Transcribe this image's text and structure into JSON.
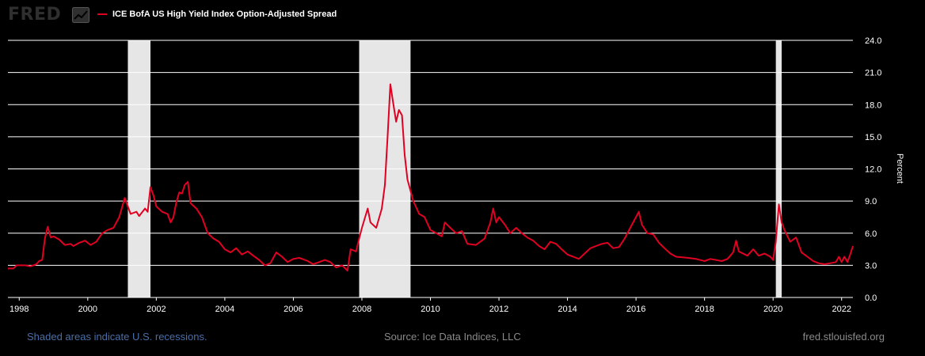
{
  "header": {
    "logo_text": "FRED",
    "logo_icon": "chart-line-icon"
  },
  "footer": {
    "recession_note": "Shaded areas indicate U.S. recessions.",
    "source": "Source: Ice Data Indices, LLC",
    "site": "fred.stlouisfed.org"
  },
  "colors": {
    "series": "#e00022",
    "recession": "#e6e6e6",
    "background": "#000000"
  },
  "chart_data": {
    "type": "line",
    "ylabel": "Percent",
    "ylim": [
      0,
      24
    ],
    "xlim": [
      1997.67,
      2022.33
    ],
    "yticks": [
      "0.0",
      "3.0",
      "6.0",
      "9.0",
      "12.0",
      "15.0",
      "18.0",
      "21.0",
      "24.0"
    ],
    "xticks": [
      "1998",
      "2000",
      "2002",
      "2004",
      "2006",
      "2008",
      "2010",
      "2012",
      "2014",
      "2016",
      "2018",
      "2020",
      "2022"
    ],
    "grid": "horizontal",
    "recessions": [
      [
        2001.17,
        2001.83
      ],
      [
        2007.92,
        2009.42
      ],
      [
        2020.08,
        2020.25
      ]
    ],
    "series": [
      {
        "name": "ICE BofA US High Yield Index Option-Adjusted Spread",
        "points": [
          [
            1997.67,
            2.7
          ],
          [
            1997.83,
            2.7
          ],
          [
            1997.92,
            3.0
          ],
          [
            1998.17,
            3.0
          ],
          [
            1998.33,
            2.9
          ],
          [
            1998.5,
            3.1
          ],
          [
            1998.58,
            3.4
          ],
          [
            1998.67,
            3.5
          ],
          [
            1998.75,
            5.5
          ],
          [
            1998.83,
            6.6
          ],
          [
            1998.92,
            5.6
          ],
          [
            1999.0,
            5.7
          ],
          [
            1999.17,
            5.4
          ],
          [
            1999.33,
            4.9
          ],
          [
            1999.5,
            5.0
          ],
          [
            1999.58,
            4.8
          ],
          [
            1999.75,
            5.1
          ],
          [
            1999.92,
            5.3
          ],
          [
            2000.08,
            4.9
          ],
          [
            2000.25,
            5.2
          ],
          [
            2000.42,
            6.0
          ],
          [
            2000.58,
            6.3
          ],
          [
            2000.75,
            6.5
          ],
          [
            2000.92,
            7.5
          ],
          [
            2001.08,
            9.3
          ],
          [
            2001.17,
            8.5
          ],
          [
            2001.25,
            7.8
          ],
          [
            2001.42,
            8.0
          ],
          [
            2001.5,
            7.6
          ],
          [
            2001.67,
            8.3
          ],
          [
            2001.75,
            8.0
          ],
          [
            2001.83,
            10.3
          ],
          [
            2001.92,
            9.5
          ],
          [
            2002.0,
            8.5
          ],
          [
            2002.17,
            8.0
          ],
          [
            2002.33,
            7.8
          ],
          [
            2002.42,
            7.0
          ],
          [
            2002.5,
            7.5
          ],
          [
            2002.58,
            8.8
          ],
          [
            2002.67,
            9.8
          ],
          [
            2002.75,
            9.7
          ],
          [
            2002.83,
            10.5
          ],
          [
            2002.92,
            10.8
          ],
          [
            2003.0,
            8.8
          ],
          [
            2003.17,
            8.3
          ],
          [
            2003.33,
            7.5
          ],
          [
            2003.5,
            6.0
          ],
          [
            2003.67,
            5.5
          ],
          [
            2003.83,
            5.2
          ],
          [
            2004.0,
            4.5
          ],
          [
            2004.17,
            4.2
          ],
          [
            2004.33,
            4.6
          ],
          [
            2004.5,
            4.0
          ],
          [
            2004.67,
            4.3
          ],
          [
            2004.83,
            3.9
          ],
          [
            2005.0,
            3.5
          ],
          [
            2005.17,
            3.0
          ],
          [
            2005.33,
            3.2
          ],
          [
            2005.5,
            4.2
          ],
          [
            2005.67,
            3.8
          ],
          [
            2005.83,
            3.3
          ],
          [
            2006.0,
            3.6
          ],
          [
            2006.17,
            3.7
          ],
          [
            2006.42,
            3.4
          ],
          [
            2006.58,
            3.1
          ],
          [
            2006.75,
            3.3
          ],
          [
            2006.92,
            3.5
          ],
          [
            2007.08,
            3.3
          ],
          [
            2007.25,
            2.8
          ],
          [
            2007.42,
            3.0
          ],
          [
            2007.58,
            2.5
          ],
          [
            2007.67,
            4.5
          ],
          [
            2007.83,
            4.3
          ],
          [
            2007.92,
            5.5
          ],
          [
            2008.0,
            6.5
          ],
          [
            2008.17,
            8.3
          ],
          [
            2008.25,
            7.0
          ],
          [
            2008.42,
            6.5
          ],
          [
            2008.58,
            8.3
          ],
          [
            2008.67,
            10.5
          ],
          [
            2008.75,
            15.0
          ],
          [
            2008.83,
            19.9
          ],
          [
            2008.92,
            18.0
          ],
          [
            2009.0,
            16.4
          ],
          [
            2009.08,
            17.5
          ],
          [
            2009.17,
            17.0
          ],
          [
            2009.25,
            13.3
          ],
          [
            2009.33,
            11.0
          ],
          [
            2009.5,
            9.0
          ],
          [
            2009.67,
            7.8
          ],
          [
            2009.83,
            7.5
          ],
          [
            2010.0,
            6.3
          ],
          [
            2010.17,
            6.0
          ],
          [
            2010.33,
            5.7
          ],
          [
            2010.42,
            7.0
          ],
          [
            2010.58,
            6.5
          ],
          [
            2010.75,
            6.0
          ],
          [
            2010.92,
            6.2
          ],
          [
            2011.08,
            5.0
          ],
          [
            2011.33,
            4.9
          ],
          [
            2011.58,
            5.5
          ],
          [
            2011.75,
            7.0
          ],
          [
            2011.83,
            8.3
          ],
          [
            2011.92,
            7.0
          ],
          [
            2012.0,
            7.5
          ],
          [
            2012.17,
            6.8
          ],
          [
            2012.33,
            6.0
          ],
          [
            2012.5,
            6.5
          ],
          [
            2012.67,
            6.0
          ],
          [
            2012.83,
            5.6
          ],
          [
            2013.0,
            5.3
          ],
          [
            2013.17,
            4.8
          ],
          [
            2013.33,
            4.5
          ],
          [
            2013.5,
            5.2
          ],
          [
            2013.67,
            5.0
          ],
          [
            2013.83,
            4.5
          ],
          [
            2014.0,
            4.0
          ],
          [
            2014.17,
            3.8
          ],
          [
            2014.33,
            3.6
          ],
          [
            2014.5,
            4.1
          ],
          [
            2014.67,
            4.6
          ],
          [
            2014.83,
            4.8
          ],
          [
            2015.0,
            5.0
          ],
          [
            2015.17,
            5.1
          ],
          [
            2015.33,
            4.6
          ],
          [
            2015.5,
            4.7
          ],
          [
            2015.67,
            5.5
          ],
          [
            2015.83,
            6.5
          ],
          [
            2016.0,
            7.5
          ],
          [
            2016.08,
            8.0
          ],
          [
            2016.17,
            6.8
          ],
          [
            2016.33,
            6.0
          ],
          [
            2016.5,
            5.9
          ],
          [
            2016.67,
            5.1
          ],
          [
            2016.83,
            4.6
          ],
          [
            2017.0,
            4.1
          ],
          [
            2017.17,
            3.8
          ],
          [
            2017.5,
            3.7
          ],
          [
            2017.75,
            3.6
          ],
          [
            2018.0,
            3.4
          ],
          [
            2018.17,
            3.6
          ],
          [
            2018.5,
            3.4
          ],
          [
            2018.67,
            3.6
          ],
          [
            2018.83,
            4.2
          ],
          [
            2018.92,
            5.3
          ],
          [
            2019.0,
            4.3
          ],
          [
            2019.25,
            3.9
          ],
          [
            2019.42,
            4.5
          ],
          [
            2019.58,
            3.9
          ],
          [
            2019.75,
            4.1
          ],
          [
            2019.92,
            3.8
          ],
          [
            2020.0,
            3.5
          ],
          [
            2020.08,
            5.2
          ],
          [
            2020.17,
            8.7
          ],
          [
            2020.25,
            7.0
          ],
          [
            2020.33,
            6.3
          ],
          [
            2020.5,
            5.2
          ],
          [
            2020.67,
            5.6
          ],
          [
            2020.83,
            4.2
          ],
          [
            2021.0,
            3.8
          ],
          [
            2021.17,
            3.4
          ],
          [
            2021.33,
            3.2
          ],
          [
            2021.5,
            3.1
          ],
          [
            2021.67,
            3.2
          ],
          [
            2021.83,
            3.3
          ],
          [
            2021.92,
            3.8
          ],
          [
            2022.0,
            3.3
          ],
          [
            2022.08,
            3.8
          ],
          [
            2022.17,
            3.3
          ],
          [
            2022.25,
            4.0
          ],
          [
            2022.33,
            4.8
          ]
        ]
      }
    ]
  }
}
